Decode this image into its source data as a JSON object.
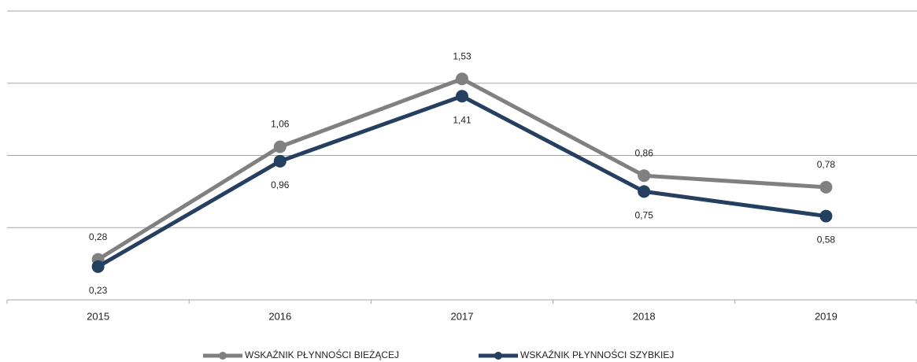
{
  "chart_data": {
    "type": "line",
    "categories": [
      "2015",
      "2016",
      "2017",
      "2018",
      "2019"
    ],
    "series": [
      {
        "name": "WSKAŹNIK PŁYNNOŚCI BIEŻĄCEJ",
        "color": "#808080",
        "values": [
          0.28,
          1.06,
          1.53,
          0.86,
          0.78
        ],
        "value_labels": [
          "0,28",
          "1,06",
          "1,53",
          "0,86",
          "0,78"
        ]
      },
      {
        "name": "WSKAŹNIK PŁYNNOŚCI SZYBKIEJ",
        "color": "#243f60",
        "values": [
          0.23,
          0.96,
          1.41,
          0.75,
          0.58
        ],
        "value_labels": [
          "0,23",
          "0,96",
          "1,41",
          "0,75",
          "0,58"
        ]
      }
    ],
    "ylim": [
      0,
      2
    ],
    "yticks": [
      0,
      0.5,
      1,
      1.5,
      2
    ],
    "grid": true,
    "legend": "bottom"
  }
}
